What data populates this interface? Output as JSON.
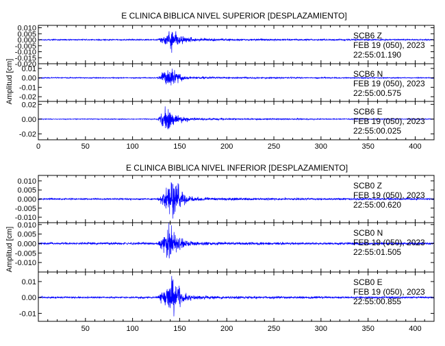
{
  "colors": {
    "trace": "#0000ff",
    "axis": "#000000",
    "background": "#ffffff"
  },
  "chart_data": [
    {
      "type": "line",
      "title": "E CLINICA BIBLICA NIVEL SUPERIOR [DESPLAZAMIENTO]",
      "ylabel": "Amplitud [cm]",
      "xlim": [
        0,
        420
      ],
      "x_ticks": [
        0,
        50,
        100,
        150,
        200,
        250,
        300,
        350,
        400
      ],
      "x_tick_labels": [
        "0",
        "50",
        "100",
        "150",
        "200",
        "250",
        "300",
        "350",
        "400"
      ],
      "grid": false,
      "series": [
        {
          "name": "SCB6 Z",
          "station": "SCB6",
          "component": "Z",
          "date": "FEB 19 (050), 2023",
          "time": "22:55:01.190",
          "ylim": [
            -0.02,
            0.012
          ],
          "y_ticks": [
            0.01,
            0.005,
            0.0,
            -0.005,
            -0.01,
            -0.015,
            -0.02
          ],
          "y_tick_labels": [
            "0.010",
            "0.005",
            "0.000",
            "-0.005",
            "-0.010",
            "-0.015",
            "-0.020"
          ],
          "onset": 125,
          "peak": 143,
          "peak_amplitude": 0.009,
          "noise": 0.0005,
          "coda": 0.06,
          "seed": 11
        },
        {
          "name": "SCB6 N",
          "station": "SCB6",
          "component": "N",
          "date": "FEB 19 (050), 2023",
          "time": "22:55:00.575",
          "ylim": [
            -0.025,
            0.015
          ],
          "y_ticks": [
            0.01,
            0.0,
            -0.01,
            -0.02
          ],
          "y_tick_labels": [
            "0.01",
            "0.00",
            "-0.01",
            "-0.02"
          ],
          "onset": 125,
          "peak": 140,
          "peak_amplitude": 0.012,
          "noise": 0.0005,
          "coda": 0.06,
          "seed": 23
        },
        {
          "name": "SCB6 E",
          "station": "SCB6",
          "component": "E",
          "date": "FEB 19 (050), 2023",
          "time": "22:55:00.025",
          "ylim": [
            -0.028,
            0.024
          ],
          "y_ticks": [
            0.02,
            0.0,
            -0.02
          ],
          "y_tick_labels": [
            "0.02",
            "0.00",
            "-0.02"
          ],
          "onset": 125,
          "peak": 138,
          "peak_amplitude": 0.019,
          "noise": 0.0005,
          "coda": 0.06,
          "seed": 37
        }
      ]
    },
    {
      "type": "line",
      "title": "E CLINICA BIBLICA NIVEL INFERIOR [DESPLAZAMIENTO]",
      "ylabel": "Amplitud [cm]",
      "xlim": [
        0,
        420
      ],
      "x_ticks": [
        50,
        100,
        150,
        200,
        250,
        300,
        350,
        400
      ],
      "x_tick_labels": [
        "50",
        "100",
        "150",
        "200",
        "250",
        "300",
        "350",
        "400"
      ],
      "grid": false,
      "series": [
        {
          "name": "SCB0 Z",
          "station": "SCB0",
          "component": "Z",
          "date": "FEB 19 (050), 2023",
          "time": "22:55:00.620",
          "ylim": [
            -0.013,
            0.013
          ],
          "y_ticks": [
            0.01,
            0.005,
            0.0,
            -0.005,
            -0.01
          ],
          "y_tick_labels": [
            "0.010",
            "0.005",
            "0.000",
            "-0.005",
            "-0.010"
          ],
          "onset": 125,
          "peak": 143,
          "peak_amplitude": 0.011,
          "noise": 0.0004,
          "coda": 0.05,
          "seed": 51
        },
        {
          "name": "SCB0 N",
          "station": "SCB0",
          "component": "N",
          "date": "FEB 19 (050), 2023",
          "time": "22:55:01.505",
          "ylim": [
            -0.015,
            0.011
          ],
          "y_ticks": [
            0.01,
            0.005,
            0.0,
            -0.005,
            -0.01
          ],
          "y_tick_labels": [
            "0.010",
            "0.005",
            "0.000",
            "-0.005",
            "-0.010"
          ],
          "onset": 125,
          "peak": 140,
          "peak_amplitude": 0.01,
          "noise": 0.0005,
          "coda": 0.04,
          "seed": 67
        },
        {
          "name": "SCB0 E",
          "station": "SCB0",
          "component": "E",
          "date": "FEB 19 (050), 2023",
          "time": "22:55:00.855",
          "ylim": [
            -0.015,
            0.016
          ],
          "y_ticks": [
            0.01,
            0.0,
            -0.01
          ],
          "y_tick_labels": [
            "0.01",
            "0.00",
            "-0.01"
          ],
          "onset": 125,
          "peak": 142,
          "peak_amplitude": 0.014,
          "noise": 0.0005,
          "coda": 0.04,
          "seed": 83
        }
      ]
    }
  ]
}
